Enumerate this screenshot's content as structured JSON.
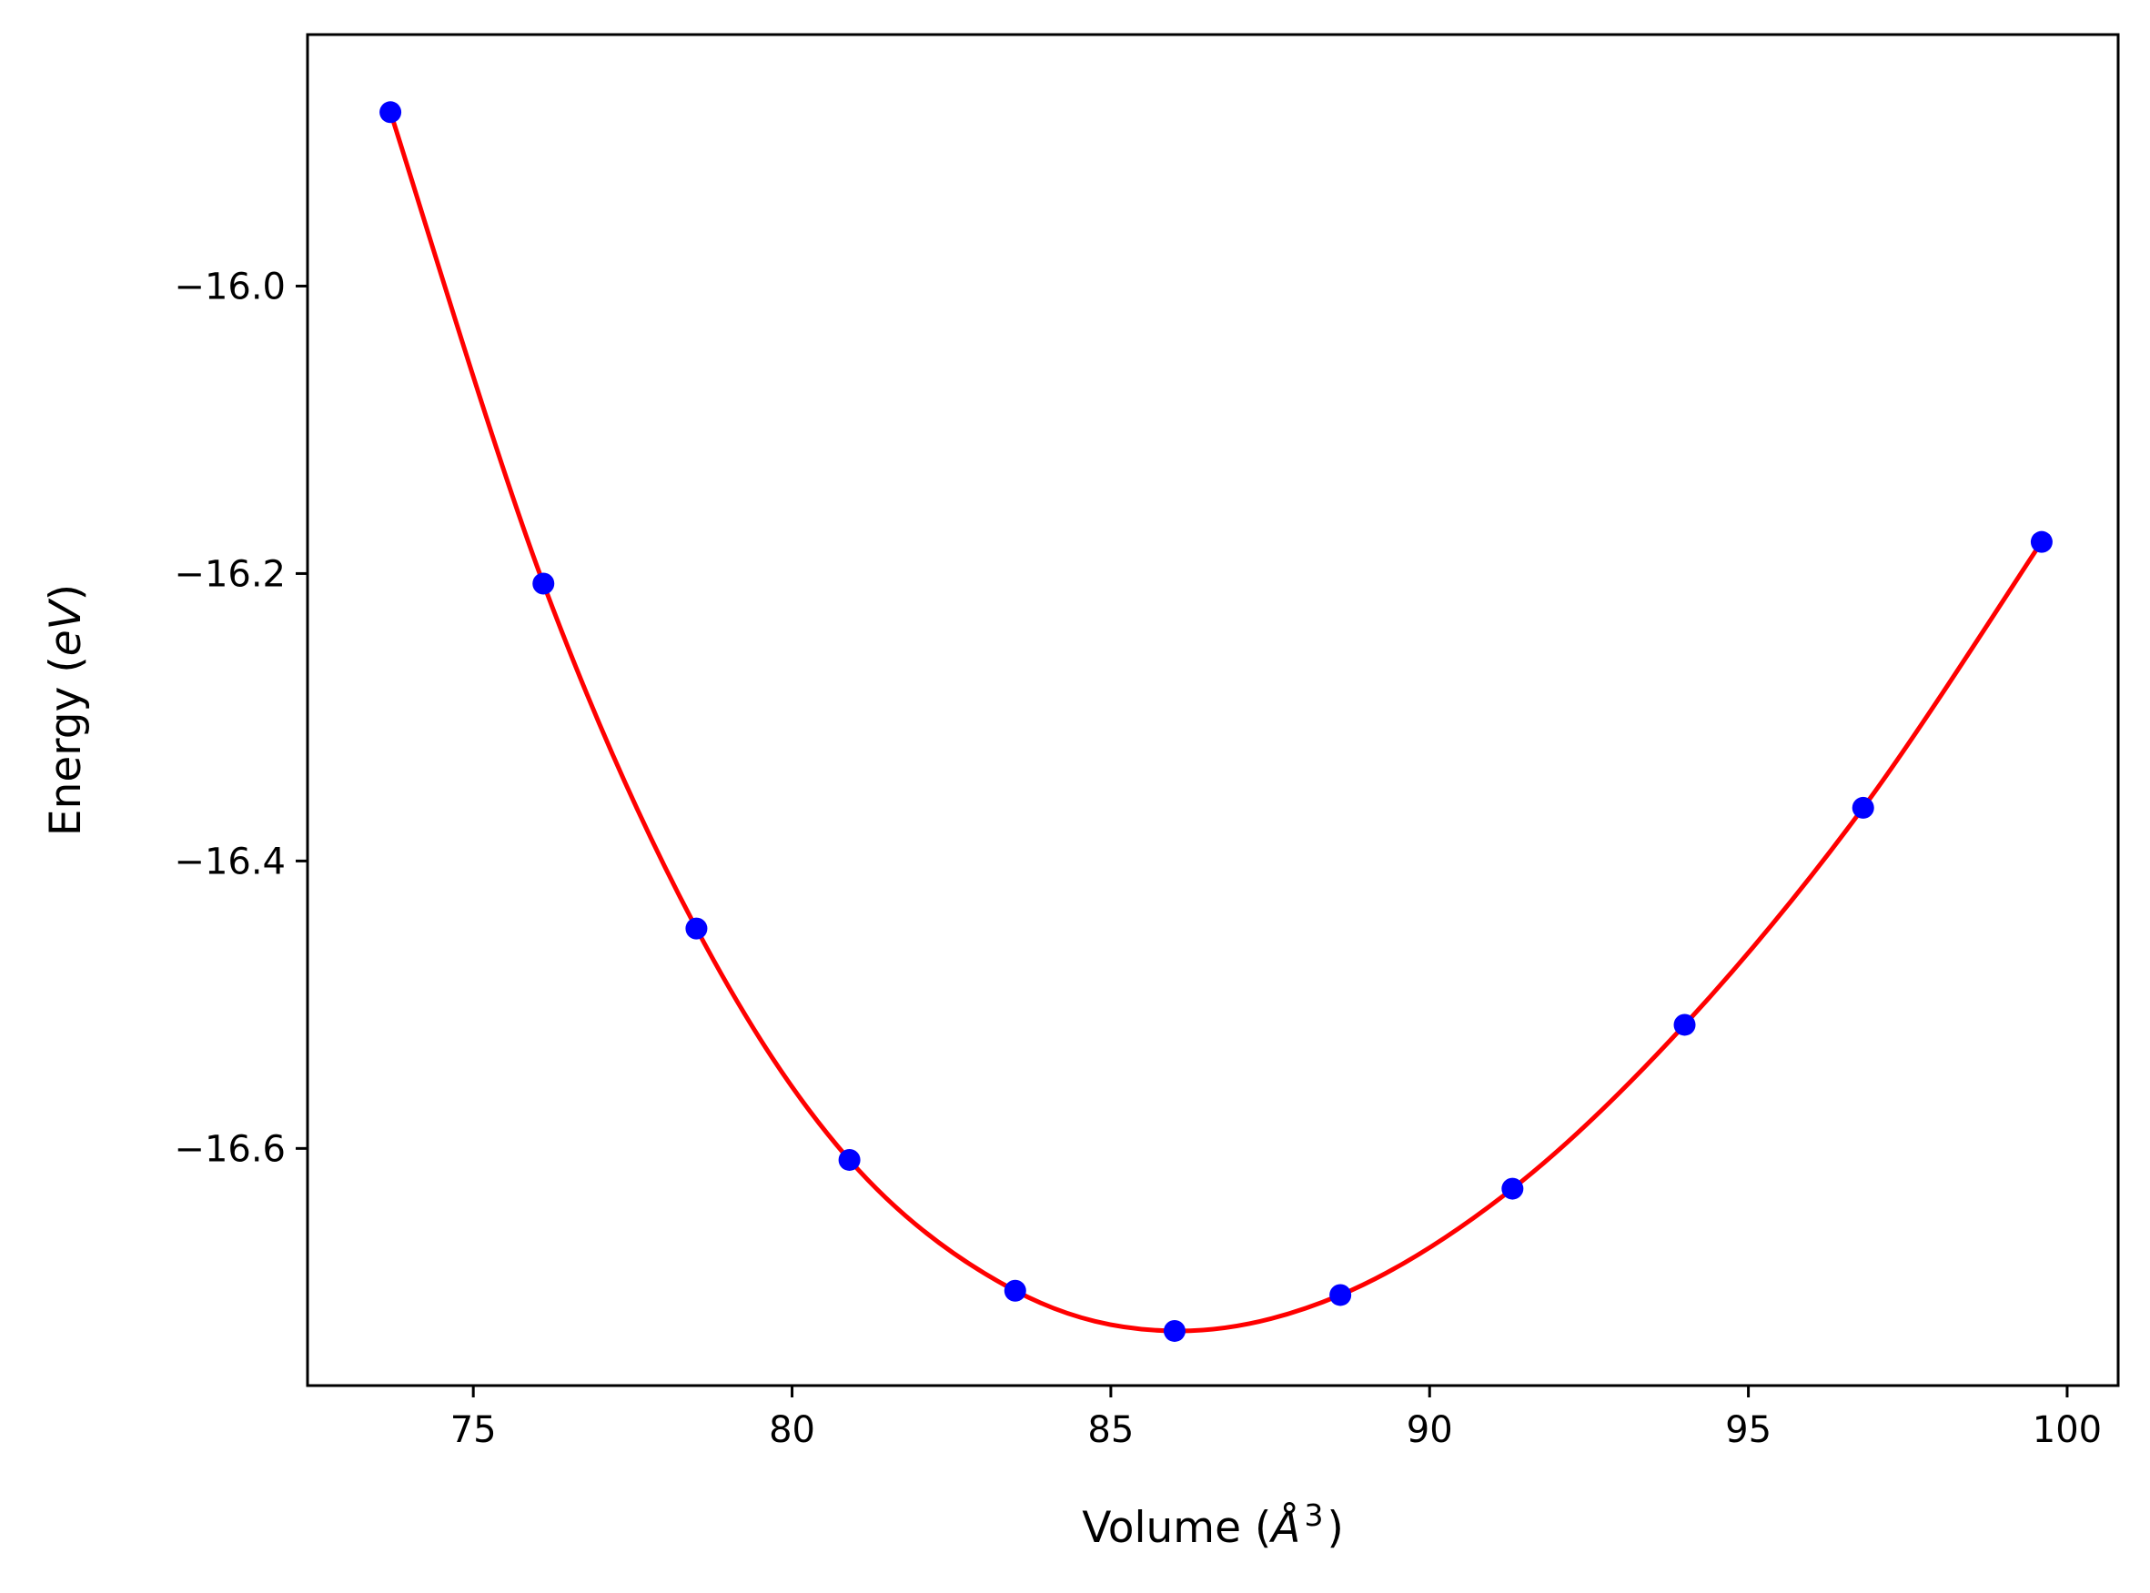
{
  "chart_data": {
    "type": "scatter",
    "title": "",
    "xlabel": {
      "prefix": "Volume (",
      "symbol": "Å",
      "superscript": "3",
      "suffix": ")"
    },
    "ylabel": {
      "prefix": "Energy (",
      "italic": "eV",
      "suffix": ")"
    },
    "xlim": [
      72.4,
      100.8
    ],
    "ylim": [
      -16.765,
      -15.825
    ],
    "xticks": [
      75,
      80,
      85,
      90,
      95,
      100
    ],
    "xtick_labels": [
      "75",
      "80",
      "85",
      "90",
      "95",
      "100"
    ],
    "yticks": [
      -16.0,
      -16.2,
      -16.4,
      -16.6
    ],
    "ytick_labels": [
      "−16.0",
      "−16.2",
      "−16.4",
      "−16.6"
    ],
    "grid": false,
    "legend": "none",
    "series": [
      {
        "kind": "points",
        "color": "#0000ff",
        "x": [
          73.7,
          76.1,
          78.5,
          80.9,
          83.5,
          86.0,
          88.6,
          91.3,
          94.0,
          96.8,
          99.6
        ],
        "y": [
          -15.879,
          -16.207,
          -16.447,
          -16.608,
          -16.699,
          -16.727,
          -16.702,
          -16.628,
          -16.514,
          -16.363,
          -16.178
        ]
      },
      {
        "kind": "fit-curve",
        "color": "#ff0000",
        "x": [
          73.7,
          76.1,
          78.5,
          80.9,
          83.5,
          86.0,
          88.6,
          91.3,
          94.0,
          96.8,
          99.6
        ],
        "y": [
          -15.879,
          -16.207,
          -16.447,
          -16.608,
          -16.699,
          -16.727,
          -16.702,
          -16.628,
          -16.514,
          -16.363,
          -16.178
        ]
      }
    ]
  }
}
